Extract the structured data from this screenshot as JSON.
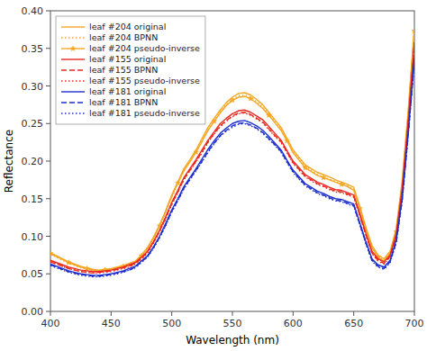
{
  "chart_data": {
    "type": "line",
    "xlabel": "Wavelength (nm)",
    "ylabel": "Reflectance",
    "xlim": [
      400,
      700
    ],
    "ylim": [
      0,
      0.4
    ],
    "xticks": [
      400,
      450,
      500,
      550,
      600,
      650,
      700
    ],
    "yticks": [
      {
        "value": 0,
        "label": "0.00"
      },
      0.05,
      {
        "value": 0.1,
        "label": "0.10"
      },
      0.15,
      {
        "value": 0.2,
        "label": "0.20"
      },
      0.25,
      {
        "value": 0.3,
        "label": "0.30"
      },
      0.35,
      {
        "value": 0.4,
        "label": "0.40"
      }
    ],
    "grid": false,
    "legend": "upper left",
    "x": [
      400,
      405,
      410,
      415,
      420,
      425,
      430,
      435,
      440,
      445,
      450,
      455,
      460,
      465,
      470,
      475,
      480,
      485,
      490,
      495,
      500,
      505,
      510,
      515,
      520,
      525,
      530,
      535,
      540,
      545,
      550,
      555,
      560,
      565,
      570,
      575,
      580,
      585,
      590,
      595,
      600,
      605,
      610,
      615,
      620,
      625,
      630,
      635,
      640,
      645,
      650,
      655,
      660,
      665,
      670,
      675,
      680,
      685,
      690,
      695,
      700
    ],
    "series": [
      {
        "name": "leaf #204 original",
        "color": "#F5A623",
        "line_style": "solid",
        "values": [
          0.078,
          0.074,
          0.07,
          0.066,
          0.063,
          0.06,
          0.058,
          0.056,
          0.055,
          0.056,
          0.057,
          0.059,
          0.061,
          0.064,
          0.067,
          0.075,
          0.085,
          0.099,
          0.115,
          0.134,
          0.155,
          0.172,
          0.19,
          0.202,
          0.215,
          0.23,
          0.245,
          0.257,
          0.268,
          0.278,
          0.285,
          0.29,
          0.291,
          0.288,
          0.282,
          0.275,
          0.265,
          0.255,
          0.245,
          0.23,
          0.215,
          0.205,
          0.195,
          0.19,
          0.185,
          0.182,
          0.179,
          0.175,
          0.172,
          0.169,
          0.165,
          0.14,
          0.112,
          0.088,
          0.075,
          0.07,
          0.08,
          0.11,
          0.175,
          0.27,
          0.38
        ]
      },
      {
        "name": "leaf #204 BPNN",
        "color": "#F5A623",
        "line_style": "dotted",
        "values": [
          0.076,
          0.072,
          0.068,
          0.064,
          0.061,
          0.058,
          0.056,
          0.054,
          0.053,
          0.054,
          0.055,
          0.057,
          0.059,
          0.062,
          0.065,
          0.073,
          0.083,
          0.097,
          0.113,
          0.132,
          0.152,
          0.17,
          0.188,
          0.2,
          0.213,
          0.227,
          0.242,
          0.254,
          0.265,
          0.275,
          0.282,
          0.287,
          0.288,
          0.285,
          0.279,
          0.272,
          0.263,
          0.253,
          0.242,
          0.228,
          0.212,
          0.203,
          0.193,
          0.188,
          0.182,
          0.179,
          0.176,
          0.173,
          0.17,
          0.167,
          0.162,
          0.138,
          0.11,
          0.086,
          0.073,
          0.068,
          0.078,
          0.107,
          0.17,
          0.265,
          0.375
        ]
      },
      {
        "name": "leaf #204 pseudo-inverse",
        "color": "#F5A623",
        "line_style": "solid",
        "marker": "star",
        "values": [
          0.077,
          0.073,
          0.069,
          0.065,
          0.062,
          0.059,
          0.057,
          0.055,
          0.054,
          0.055,
          0.056,
          0.058,
          0.06,
          0.063,
          0.066,
          0.074,
          0.084,
          0.098,
          0.114,
          0.133,
          0.153,
          0.171,
          0.187,
          0.199,
          0.212,
          0.226,
          0.241,
          0.253,
          0.264,
          0.274,
          0.281,
          0.285,
          0.286,
          0.283,
          0.277,
          0.27,
          0.261,
          0.251,
          0.241,
          0.227,
          0.211,
          0.201,
          0.191,
          0.186,
          0.181,
          0.178,
          0.175,
          0.172,
          0.169,
          0.166,
          0.161,
          0.137,
          0.109,
          0.085,
          0.072,
          0.067,
          0.077,
          0.106,
          0.169,
          0.263,
          0.373
        ]
      },
      {
        "name": "leaf #155 original",
        "color": "#E8281E",
        "line_style": "solid",
        "values": [
          0.068,
          0.065,
          0.062,
          0.059,
          0.057,
          0.055,
          0.054,
          0.053,
          0.053,
          0.054,
          0.055,
          0.057,
          0.059,
          0.062,
          0.065,
          0.072,
          0.08,
          0.093,
          0.108,
          0.126,
          0.145,
          0.161,
          0.178,
          0.19,
          0.202,
          0.215,
          0.228,
          0.239,
          0.25,
          0.257,
          0.263,
          0.267,
          0.268,
          0.265,
          0.26,
          0.255,
          0.246,
          0.237,
          0.228,
          0.214,
          0.2,
          0.191,
          0.182,
          0.177,
          0.172,
          0.169,
          0.165,
          0.162,
          0.161,
          0.158,
          0.155,
          0.13,
          0.104,
          0.08,
          0.07,
          0.066,
          0.075,
          0.103,
          0.164,
          0.255,
          0.358
        ]
      },
      {
        "name": "leaf #155 BPNN",
        "color": "#E8281E",
        "line_style": "dashed",
        "values": [
          0.066,
          0.063,
          0.06,
          0.057,
          0.055,
          0.053,
          0.052,
          0.051,
          0.052,
          0.053,
          0.054,
          0.056,
          0.058,
          0.06,
          0.064,
          0.07,
          0.079,
          0.092,
          0.107,
          0.124,
          0.143,
          0.159,
          0.176,
          0.188,
          0.2,
          0.212,
          0.226,
          0.237,
          0.247,
          0.254,
          0.26,
          0.264,
          0.265,
          0.262,
          0.257,
          0.252,
          0.243,
          0.234,
          0.226,
          0.212,
          0.198,
          0.189,
          0.18,
          0.175,
          0.17,
          0.167,
          0.163,
          0.16,
          0.159,
          0.156,
          0.153,
          0.128,
          0.102,
          0.078,
          0.068,
          0.064,
          0.073,
          0.1,
          0.161,
          0.252,
          0.355
        ]
      },
      {
        "name": "leaf #155 pseudo-inverse",
        "color": "#E8281E",
        "line_style": "dotted",
        "values": [
          0.066,
          0.063,
          0.06,
          0.057,
          0.055,
          0.053,
          0.052,
          0.051,
          0.051,
          0.052,
          0.053,
          0.055,
          0.057,
          0.059,
          0.063,
          0.069,
          0.078,
          0.091,
          0.106,
          0.123,
          0.142,
          0.158,
          0.175,
          0.187,
          0.199,
          0.211,
          0.225,
          0.236,
          0.246,
          0.253,
          0.259,
          0.263,
          0.264,
          0.261,
          0.256,
          0.251,
          0.242,
          0.233,
          0.225,
          0.211,
          0.197,
          0.188,
          0.179,
          0.174,
          0.169,
          0.166,
          0.162,
          0.159,
          0.158,
          0.155,
          0.152,
          0.127,
          0.101,
          0.077,
          0.067,
          0.063,
          0.072,
          0.099,
          0.16,
          0.251,
          0.353
        ]
      },
      {
        "name": "leaf #181 original",
        "color": "#1C2ECC",
        "line_style": "solid",
        "values": [
          0.063,
          0.06,
          0.057,
          0.054,
          0.052,
          0.05,
          0.049,
          0.048,
          0.048,
          0.049,
          0.05,
          0.052,
          0.054,
          0.057,
          0.06,
          0.067,
          0.074,
          0.086,
          0.1,
          0.117,
          0.135,
          0.15,
          0.166,
          0.178,
          0.19,
          0.203,
          0.216,
          0.227,
          0.237,
          0.244,
          0.25,
          0.253,
          0.254,
          0.251,
          0.247,
          0.241,
          0.233,
          0.224,
          0.215,
          0.201,
          0.188,
          0.179,
          0.17,
          0.165,
          0.16,
          0.157,
          0.153,
          0.15,
          0.149,
          0.146,
          0.143,
          0.118,
          0.093,
          0.07,
          0.062,
          0.059,
          0.068,
          0.095,
          0.152,
          0.24,
          0.338
        ]
      },
      {
        "name": "leaf #181 BPNN",
        "color": "#1C2ECC",
        "line_style": "dashed",
        "values": [
          0.062,
          0.059,
          0.056,
          0.053,
          0.051,
          0.049,
          0.048,
          0.047,
          0.047,
          0.048,
          0.049,
          0.051,
          0.053,
          0.055,
          0.059,
          0.066,
          0.073,
          0.085,
          0.099,
          0.115,
          0.133,
          0.148,
          0.164,
          0.176,
          0.188,
          0.2,
          0.213,
          0.224,
          0.234,
          0.241,
          0.247,
          0.25,
          0.251,
          0.248,
          0.244,
          0.238,
          0.23,
          0.222,
          0.213,
          0.199,
          0.186,
          0.177,
          0.168,
          0.163,
          0.158,
          0.155,
          0.151,
          0.148,
          0.147,
          0.144,
          0.141,
          0.116,
          0.091,
          0.068,
          0.06,
          0.057,
          0.066,
          0.092,
          0.149,
          0.237,
          0.335
        ]
      },
      {
        "name": "leaf #181 pseudo-inverse",
        "color": "#1C2ECC",
        "line_style": "dotted",
        "values": [
          0.061,
          0.058,
          0.055,
          0.052,
          0.05,
          0.048,
          0.047,
          0.046,
          0.046,
          0.047,
          0.048,
          0.05,
          0.052,
          0.055,
          0.058,
          0.065,
          0.072,
          0.084,
          0.098,
          0.114,
          0.132,
          0.147,
          0.163,
          0.175,
          0.187,
          0.199,
          0.212,
          0.223,
          0.233,
          0.24,
          0.245,
          0.249,
          0.25,
          0.247,
          0.243,
          0.237,
          0.229,
          0.221,
          0.212,
          0.198,
          0.185,
          0.176,
          0.167,
          0.162,
          0.157,
          0.154,
          0.15,
          0.147,
          0.146,
          0.143,
          0.14,
          0.115,
          0.09,
          0.067,
          0.059,
          0.056,
          0.065,
          0.091,
          0.148,
          0.236,
          0.332
        ]
      }
    ]
  }
}
